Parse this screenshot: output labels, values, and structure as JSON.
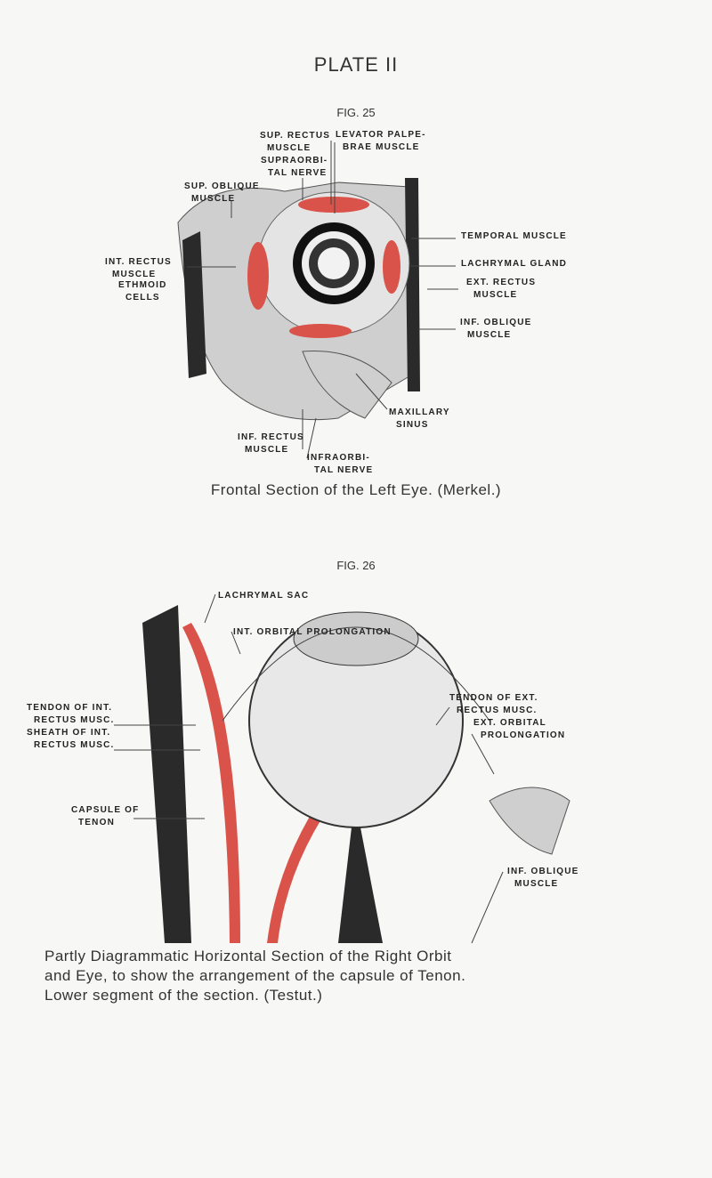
{
  "header": {
    "title": "PLATE II"
  },
  "figures": [
    {
      "label": "FIG. 25",
      "labels": [
        {
          "lines": [
            "SUP. RECTUS",
            "MUSCLE"
          ]
        },
        {
          "lines": [
            "LEVATOR PALPE-",
            "BRAE MUSCLE"
          ]
        },
        {
          "lines": [
            "SUPRAORBI-",
            "TAL NERVE"
          ]
        },
        {
          "lines": [
            "SUP. OBLIQUE",
            "MUSCLE"
          ]
        },
        {
          "lines": [
            "TEMPORAL MUSCLE"
          ]
        },
        {
          "lines": [
            "LACHRYMAL GLAND"
          ]
        },
        {
          "lines": [
            "INT. RECTUS",
            "MUSCLE"
          ]
        },
        {
          "lines": [
            "ETHMOID",
            "CELLS"
          ]
        },
        {
          "lines": [
            "EXT. RECTUS",
            "MUSCLE"
          ]
        },
        {
          "lines": [
            "INF. OBLIQUE",
            "MUSCLE"
          ]
        },
        {
          "lines": [
            "MAXILLARY",
            "SINUS"
          ]
        },
        {
          "lines": [
            "INF. RECTUS",
            "MUSCLE"
          ]
        },
        {
          "lines": [
            "INFRAORBI-",
            "TAL NERVE"
          ]
        }
      ],
      "caption": [
        "Frontal Section of the Left Eye. (Merkel.)"
      ]
    },
    {
      "label": "FIG. 26",
      "labels": [
        {
          "lines": [
            "LACHRYMAL SAC"
          ]
        },
        {
          "lines": [
            "INT. ORBITAL PROLONGATION"
          ]
        },
        {
          "lines": [
            "TENDON OF EXT.",
            "RECTUS MUSC."
          ]
        },
        {
          "lines": [
            "TENDON OF INT.",
            "RECTUS MUSC."
          ]
        },
        {
          "lines": [
            "SHEATH OF INT.",
            "RECTUS MUSC."
          ]
        },
        {
          "lines": [
            "EXT. ORBITAL",
            "PROLONGATION"
          ]
        },
        {
          "lines": [
            "CAPSULE OF",
            "TENON"
          ]
        },
        {
          "lines": [
            "INF. OBLIQUE",
            "MUSCLE"
          ]
        }
      ],
      "caption": [
        "Partly Diagrammatic Horizontal Section of the Right Orbit",
        "and Eye, to show the arrangement of the capsule of Tenon.",
        "Lower segment of the section. (Testut.)"
      ]
    }
  ]
}
